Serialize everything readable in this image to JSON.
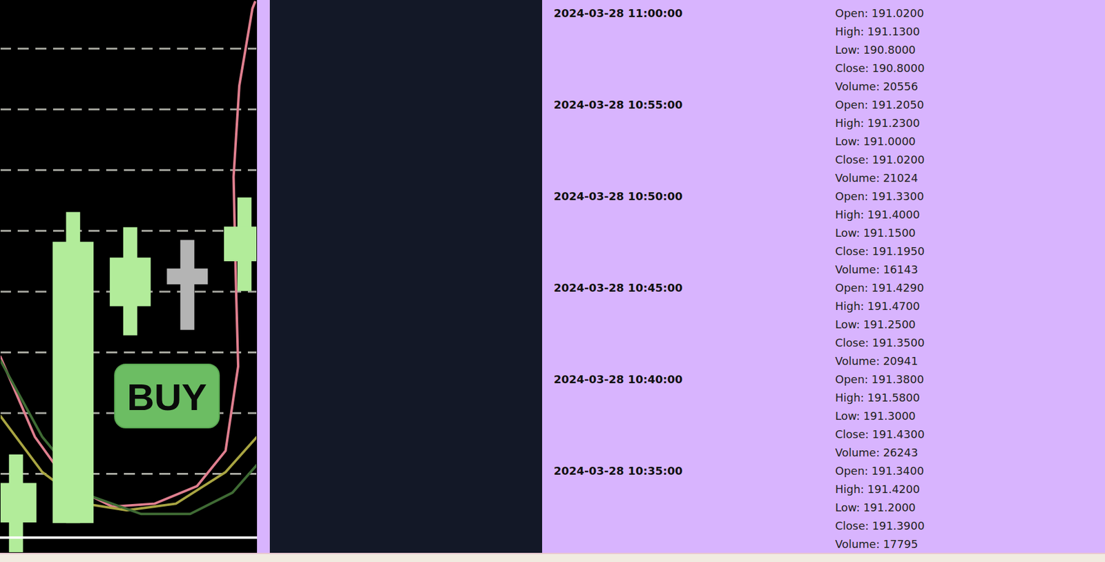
{
  "chart_data": {
    "type": "candlestick",
    "x": [
      0,
      1,
      2,
      3,
      4
    ],
    "open": [
      0.2,
      0.19,
      3.76,
      4.12,
      4.5
    ],
    "high": [
      1.32,
      5.31,
      5.06,
      4.85,
      5.55
    ],
    "low": [
      -0.4,
      0.19,
      3.28,
      3.37,
      4.01
    ],
    "close": [
      0.85,
      4.82,
      4.56,
      4.38,
      5.07
    ],
    "colors": [
      "#b2ec9a",
      "#b2ec9a",
      "#b2ec9a",
      "#b4b4b4",
      "#b2ec9a"
    ],
    "series": [
      {
        "color": "#e07f8f",
        "x": [
          -0.28,
          0.33,
          0.95,
          1.69,
          2.43,
          3.17,
          3.67,
          3.89,
          3.85,
          3.81,
          3.91,
          4.14,
          4.19
        ],
        "values": [
          2.94,
          1.61,
          0.8,
          0.46,
          0.51,
          0.8,
          1.38,
          2.77,
          4.16,
          5.89,
          7.39,
          8.66,
          8.78
        ]
      },
      {
        "color": "#a9a542",
        "x": [
          -0.28,
          0.46,
          1.2,
          1.94,
          2.8,
          3.67,
          4.22
        ],
        "values": [
          1.96,
          1.03,
          0.51,
          0.4,
          0.51,
          1.03,
          1.61
        ]
      },
      {
        "color": "#3f6b34",
        "x": [
          -0.28,
          0.46,
          1.32,
          2.19,
          3.05,
          3.79,
          4.22
        ],
        "values": [
          2.88,
          1.61,
          0.63,
          0.34,
          0.34,
          0.69,
          1.15
        ]
      }
    ],
    "xlim": [
      -0.28,
      4.22
    ],
    "ylim": [
      -0.3,
      8.8
    ],
    "yticks": [
      1,
      2,
      3,
      4,
      5,
      6,
      7,
      8
    ],
    "grid": true,
    "tick_labels": false,
    "annotation": "BUY"
  },
  "data_list": {
    "field_labels": [
      "Open:",
      "High:",
      "Low:",
      "Close:",
      "Volume:"
    ],
    "entries": [
      {
        "timestamp": "2024-03-28 11:00:00",
        "values": [
          "191.0200",
          "191.1300",
          "190.8000",
          "190.8000",
          "20556"
        ]
      },
      {
        "timestamp": "2024-03-28 10:55:00",
        "values": [
          "191.2050",
          "191.2300",
          "191.0000",
          "191.0200",
          "21024"
        ]
      },
      {
        "timestamp": "2024-03-28 10:50:00",
        "values": [
          "191.3300",
          "191.4000",
          "191.1500",
          "191.1950",
          "16143"
        ]
      },
      {
        "timestamp": "2024-03-28 10:45:00",
        "values": [
          "191.4290",
          "191.4700",
          "191.2500",
          "191.3500",
          "20941"
        ]
      },
      {
        "timestamp": "2024-03-28 10:40:00",
        "values": [
          "191.3800",
          "191.5800",
          "191.3000",
          "191.4300",
          "26243"
        ]
      },
      {
        "timestamp": "2024-03-28 10:35:00",
        "values": [
          "191.3400",
          "191.4200",
          "191.2000",
          "191.3900",
          "17795"
        ]
      }
    ]
  }
}
